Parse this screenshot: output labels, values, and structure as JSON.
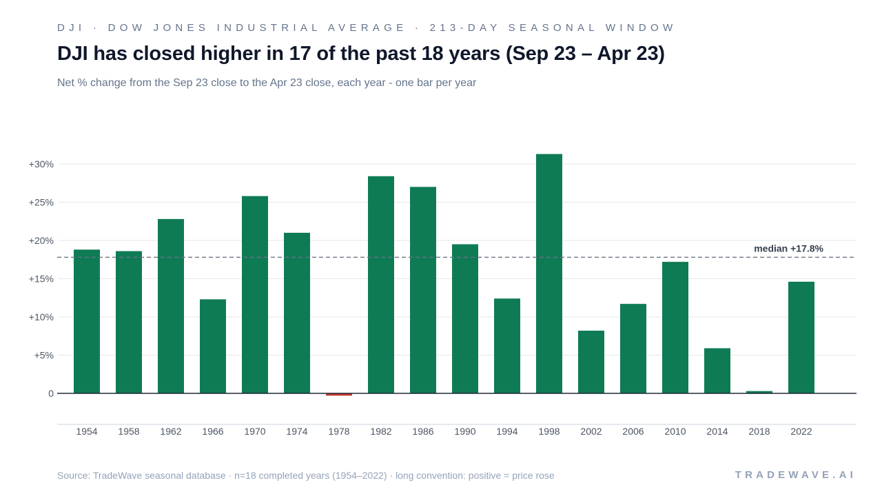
{
  "header": {
    "eyebrow": "DJI · DOW JONES INDUSTRIAL AVERAGE · 213-DAY SEASONAL WINDOW",
    "title": "DJI has closed higher in 17 of the past 18 years (Sep 23 – Apr 23)",
    "subtitle": "Net % change from the Sep 23 close to the Apr 23 close, each year - one bar per year"
  },
  "footer": {
    "source": "Source: TradeWave seasonal database · n=18 completed years (1954–2022) · long convention: positive = price rose",
    "brand": "TRADEWAVE.AI"
  },
  "colors": {
    "positive": "#0f7b55",
    "negative": "#c0392b",
    "gridline": "#e5e7eb",
    "baseline": "#1f2937",
    "median_line": "#6b7280",
    "axis_text": "#4b5563"
  },
  "chart_data": {
    "type": "bar",
    "categories": [
      "1954",
      "1958",
      "1962",
      "1966",
      "1970",
      "1974",
      "1978",
      "1982",
      "1986",
      "1990",
      "1994",
      "1998",
      "2002",
      "2006",
      "2010",
      "2014",
      "2018",
      "2022"
    ],
    "values": [
      18.8,
      18.6,
      22.8,
      12.3,
      25.8,
      21.0,
      -0.3,
      28.4,
      27.0,
      19.5,
      12.4,
      31.3,
      8.2,
      11.7,
      17.2,
      5.9,
      0.3,
      14.6
    ],
    "ylim": [
      -4,
      31
    ],
    "yticks": [
      {
        "value": 0,
        "label": "0"
      },
      {
        "value": 5,
        "label": "+5%"
      },
      {
        "value": 10,
        "label": "+10%"
      },
      {
        "value": 15,
        "label": "+15%"
      },
      {
        "value": 20,
        "label": "+20%"
      },
      {
        "value": 25,
        "label": "+25%"
      },
      {
        "value": 30,
        "label": "+30%"
      }
    ],
    "median": {
      "value": 17.8,
      "label": "median +17.8%"
    },
    "grid": true,
    "legend": "none",
    "xlabel": "",
    "ylabel": ""
  }
}
